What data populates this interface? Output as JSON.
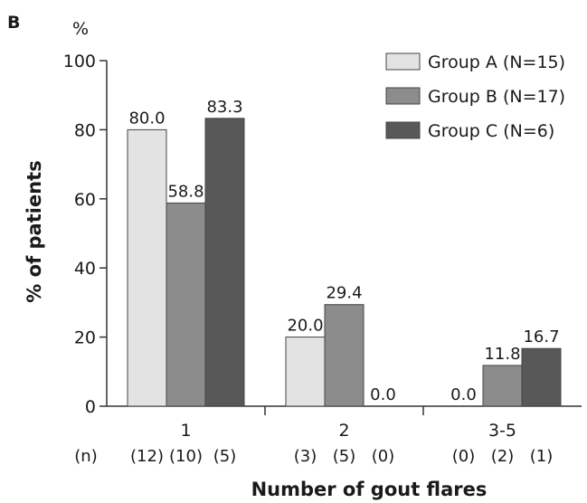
{
  "panel_label": "B",
  "chart_data": {
    "type": "bar",
    "title": "",
    "ylabel": "% of patients",
    "xlabel": "Number of gout flares",
    "y_unit": "%",
    "ylim": [
      0,
      100
    ],
    "y_ticks": [
      0,
      20,
      40,
      60,
      80,
      100
    ],
    "categories": [
      "1",
      "2",
      "3-5"
    ],
    "n_row_label": "(n)",
    "series": [
      {
        "name": "Group A (N=15)",
        "color": "#e3e3e3",
        "values": [
          80.0,
          20.0,
          0.0
        ],
        "labels": [
          "80.0",
          "20.0",
          "0.0"
        ],
        "counts": [
          "(12)",
          "(3)",
          "(0)"
        ]
      },
      {
        "name": "Group B (N=17)",
        "color": "#8c8c8c",
        "values": [
          58.8,
          29.4,
          11.8
        ],
        "labels": [
          "58.8",
          "29.4",
          "11.8"
        ],
        "counts": [
          "(10)",
          "(5)",
          "(2)"
        ]
      },
      {
        "name": "Group C (N=6)",
        "color": "#585858",
        "values": [
          83.3,
          0.0,
          16.7
        ],
        "labels": [
          "83.3",
          "0.0",
          "16.7"
        ],
        "counts": [
          "(5)",
          "(0)",
          "(1)"
        ]
      }
    ],
    "legend_position": "top-right",
    "grid": false
  }
}
